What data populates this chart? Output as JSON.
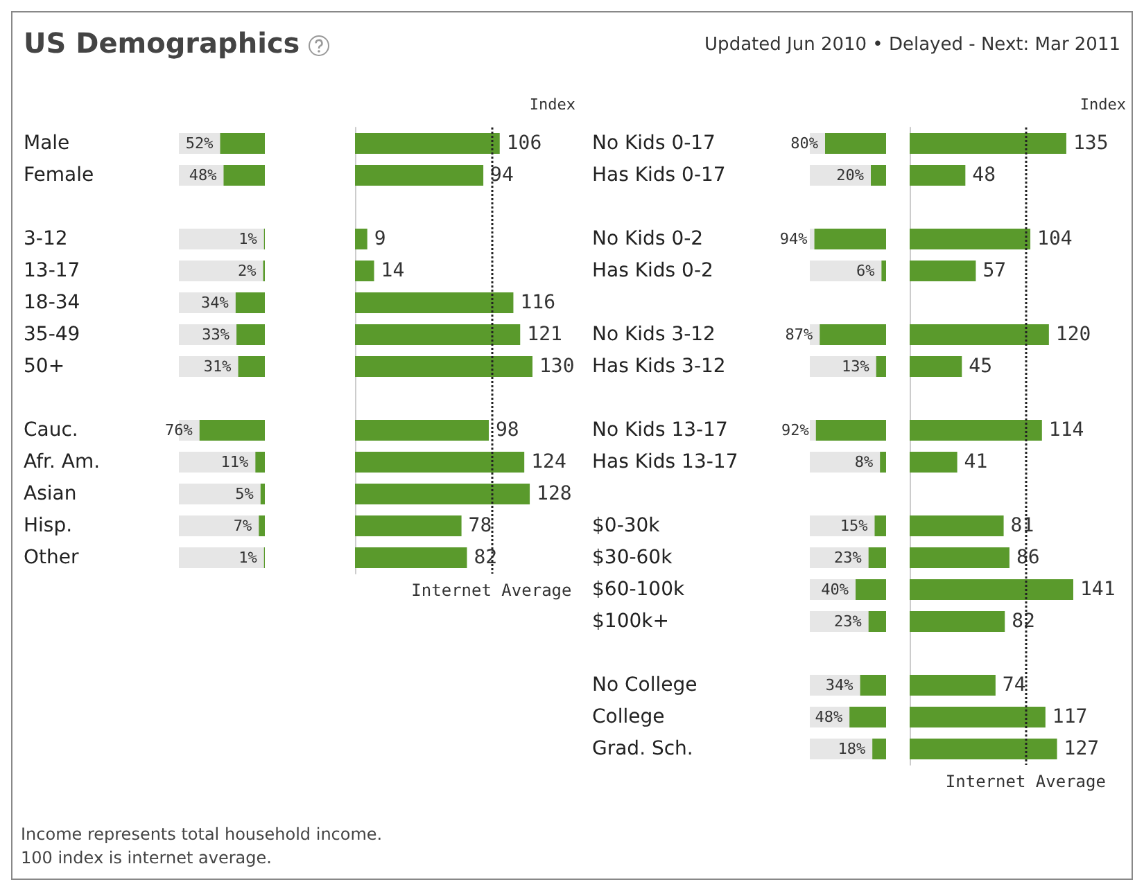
{
  "chart_data": [
    {
      "type": "bar",
      "title": "US Demographics",
      "orientation": "horizontal",
      "tick_labels": "y",
      "grid": false,
      "categories": [
        "Male",
        "Female",
        null,
        "3-12",
        "13-17",
        "18-34",
        "35-49",
        "50+",
        null,
        "Cauc.",
        "Afr. Am.",
        "Asian",
        "Hisp.",
        "Other"
      ],
      "xlim": [
        100,
        0
      ],
      "series": [
        {
          "color": "#5a9a2c",
          "values": [
            52,
            48,
            null,
            1,
            2,
            34,
            33,
            31,
            null,
            76,
            11,
            5,
            7,
            1
          ],
          "value_labels": [
            "52%",
            "48%",
            null,
            "1%",
            "2%",
            "34%",
            "33%",
            "31%",
            null,
            "76%",
            "11%",
            "5%",
            "7%",
            "1%"
          ]
        }
      ],
      "annotations": [
        "Income represents total household income.",
        "100 index is internet average."
      ]
    },
    {
      "type": "bar",
      "orientation": "horizontal",
      "tick_labels": false,
      "grid": false,
      "categories": [
        null,
        null,
        null,
        null,
        null,
        null,
        null,
        null,
        null,
        null,
        null,
        null,
        null,
        null
      ],
      "series": [
        {
          "color": "#5a9a2c",
          "values": [
            106,
            94,
            null,
            9,
            14,
            116,
            121,
            130,
            null,
            98,
            124,
            128,
            78,
            82
          ],
          "value_labels": [
            "106",
            "94",
            null,
            "9",
            "14",
            "116",
            "121",
            "130",
            null,
            "98",
            "124",
            "128",
            "78",
            "82"
          ]
        }
      ],
      "ref_lines": [
        {
          "axis": "x",
          "value": 100,
          "label": "Internet Average",
          "color": "#222222",
          "line_style": "dotted"
        }
      ],
      "annotations": [
        "Index"
      ]
    },
    {
      "type": "bar",
      "subtitle": "Updated Jun 2010 • Delayed - Next: Mar 2011",
      "orientation": "horizontal",
      "tick_labels": "y",
      "grid": false,
      "categories": [
        "No Kids 0-17",
        "Has Kids 0-17",
        null,
        "No Kids 0-2",
        "Has Kids 0-2",
        null,
        "No Kids 3-12",
        "Has Kids 3-12",
        null,
        "No Kids 13-17",
        "Has Kids 13-17",
        null,
        "$0-30k",
        "$30-60k",
        "$60-100k",
        "$100k+",
        null,
        "No College",
        "College",
        "Grad. Sch."
      ],
      "xlim": [
        100,
        0
      ],
      "series": [
        {
          "color": "#5a9a2c",
          "values": [
            80,
            20,
            null,
            94,
            6,
            null,
            87,
            13,
            null,
            92,
            8,
            null,
            15,
            23,
            40,
            23,
            null,
            34,
            48,
            18
          ],
          "value_labels": [
            "80%",
            "20%",
            null,
            "94%",
            "6%",
            null,
            "87%",
            "13%",
            null,
            "92%",
            "8%",
            null,
            "15%",
            "23%",
            "40%",
            "23%",
            null,
            "34%",
            "48%",
            "18%"
          ]
        }
      ]
    },
    {
      "type": "bar",
      "orientation": "horizontal",
      "tick_labels": false,
      "grid": false,
      "categories": [
        null,
        null,
        null,
        null,
        null,
        null,
        null,
        null,
        null,
        null,
        null,
        null,
        null,
        null,
        null,
        null,
        null,
        null,
        null,
        null
      ],
      "series": [
        {
          "color": "#5a9a2c",
          "values": [
            135,
            48,
            null,
            104,
            57,
            null,
            120,
            45,
            null,
            114,
            41,
            null,
            81,
            86,
            141,
            82,
            null,
            74,
            117,
            127
          ],
          "value_labels": [
            "135",
            "48",
            null,
            "104",
            "57",
            null,
            "120",
            "45",
            null,
            "114",
            "41",
            null,
            "81",
            "86",
            "141",
            "82",
            null,
            "74",
            "117",
            "127"
          ]
        }
      ],
      "ref_lines": [
        {
          "axis": "x",
          "value": 100,
          "label": "Internet Average",
          "color": "#222222",
          "line_style": "dotted"
        }
      ],
      "annotations": [
        "Index"
      ]
    }
  ]
}
